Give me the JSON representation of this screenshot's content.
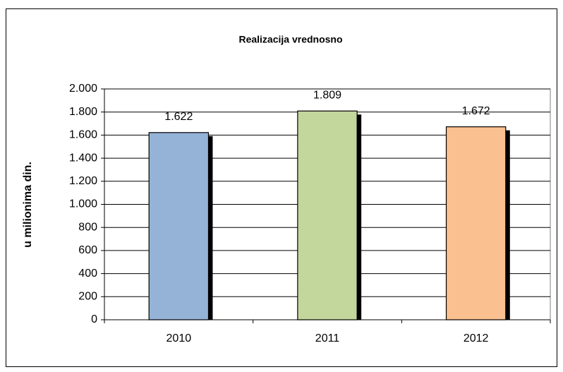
{
  "chart_data": {
    "type": "bar",
    "title": "Realizacija vrednosno",
    "y_label": "u milionima din.",
    "categories": [
      "2010",
      "2011",
      "2012"
    ],
    "values": [
      1622,
      1809,
      1672
    ],
    "value_labels": [
      "1.622",
      "1.809",
      "1.672"
    ],
    "colors": [
      "#95b3d7",
      "#c3d69b",
      "#fac090"
    ],
    "ylim": [
      0,
      2000
    ],
    "yticks": [
      0,
      200,
      400,
      600,
      800,
      {
        "value": 1000,
        "label": "1.000"
      },
      {
        "value": 1200,
        "label": "1.200"
      },
      {
        "value": 1400,
        "label": "1.400"
      },
      {
        "value": 1600,
        "label": "1.600"
      },
      {
        "value": 1800,
        "label": "1.800"
      },
      {
        "value": 2000,
        "label": "2.000"
      }
    ],
    "grid": true
  }
}
